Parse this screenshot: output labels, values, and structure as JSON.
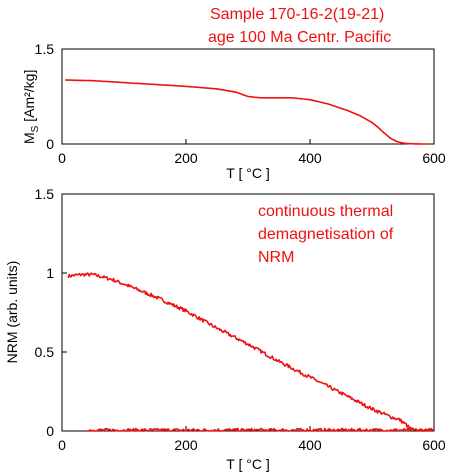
{
  "title": {
    "line1": "Sample 170-16-2(19-21)",
    "line2": "age 100 Ma Centr. Pacific"
  },
  "annotation": [
    "continuous thermal",
    "demagnetisation of",
    "NRM"
  ],
  "colors": {
    "curve": "#ee1111",
    "axis": "#000000",
    "text_red": "#ee1111"
  },
  "chart_data": [
    {
      "type": "line",
      "xlabel": "T [ °C ]",
      "ylabel_main": "M",
      "ylabel_sub": "S",
      "ylabel_unit": " [Am²/kg]",
      "xlim": [
        0,
        600
      ],
      "ylim": [
        0,
        1.5
      ],
      "xticks": [
        0,
        200,
        400,
        600
      ],
      "yticks": [
        0,
        1.5
      ],
      "ytick_labels": [
        "0",
        "1.5"
      ],
      "grid": false,
      "series": [
        {
          "x": [
            5,
            50,
            100,
            150,
            200,
            250,
            280,
            300,
            320,
            350,
            370,
            400,
            430,
            460,
            480,
            500,
            510,
            520,
            530,
            540,
            550,
            560,
            580,
            590
          ],
          "y": [
            1.01,
            1.0,
            0.97,
            0.94,
            0.91,
            0.87,
            0.82,
            0.75,
            0.73,
            0.73,
            0.73,
            0.7,
            0.63,
            0.53,
            0.45,
            0.34,
            0.26,
            0.17,
            0.09,
            0.04,
            0.015,
            0.005,
            0.0,
            0.0
          ]
        }
      ]
    },
    {
      "type": "line",
      "xlabel": "T [ °C ]",
      "ylabel": "NRM (arb. units)",
      "xlim": [
        0,
        600
      ],
      "ylim": [
        0,
        1.5
      ],
      "xticks": [
        0,
        200,
        400,
        600
      ],
      "yticks": [
        0,
        0.5,
        1,
        1.5
      ],
      "ytick_labels": [
        "0",
        "0.5",
        "1",
        "1.5"
      ],
      "grid": false,
      "series": [
        {
          "x": [
            10,
            30,
            50,
            60,
            80,
            100,
            150,
            200,
            250,
            300,
            350,
            400,
            450,
            500,
            530,
            545,
            555,
            560,
            565,
            570,
            580,
            590
          ],
          "y": [
            0.98,
            0.99,
            0.99,
            0.98,
            0.96,
            0.93,
            0.85,
            0.76,
            0.65,
            0.55,
            0.44,
            0.34,
            0.24,
            0.14,
            0.09,
            0.07,
            0.04,
            0.02,
            0.01,
            0.0,
            0.0,
            0.0
          ]
        },
        {
          "x": [
            40,
            100,
            200,
            300,
            400,
            500,
            580,
            600
          ],
          "y": [
            0.005,
            0.005,
            0.005,
            0.005,
            0.005,
            0.005,
            0.005,
            0.005
          ]
        }
      ]
    }
  ]
}
